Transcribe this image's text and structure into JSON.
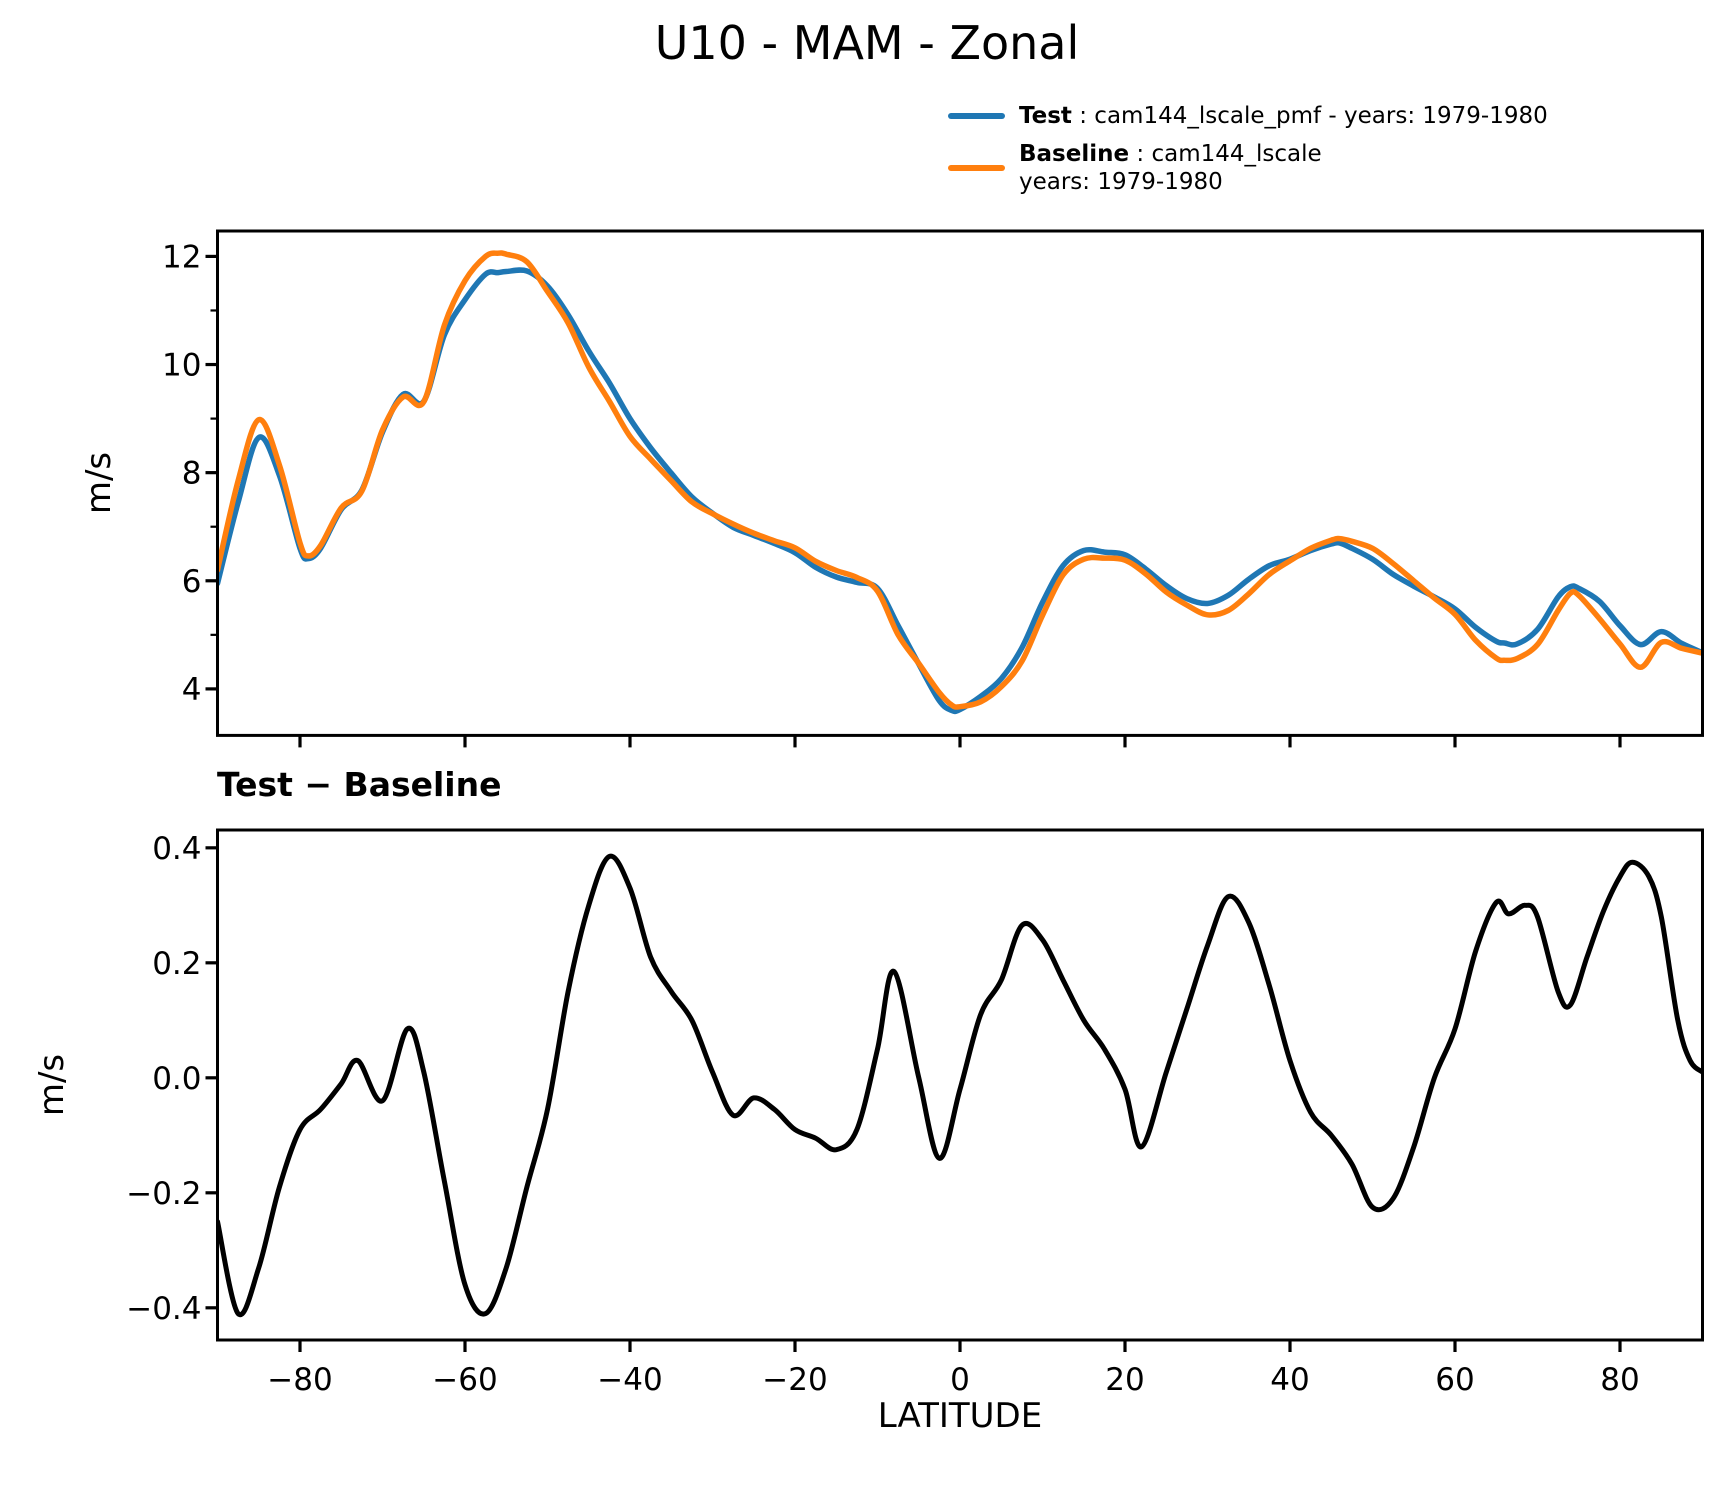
{
  "header": {
    "title": "U10 - MAM - Zonal"
  },
  "legend": {
    "entries": [
      {
        "label": "Test",
        "sep": " : ",
        "desc": "cam144_lscale_pmf - years: 1979-1980",
        "desc2": "",
        "color": "#1f77b4"
      },
      {
        "label": "Baseline",
        "sep": " : ",
        "desc": "cam144_lscale",
        "desc2": "years: 1979-1980",
        "color": "#ff7f0e"
      }
    ]
  },
  "colors": {
    "test": "#1f77b4",
    "baseline": "#ff7f0e",
    "diff": "#000000",
    "axis": "#000000"
  },
  "chart_data": [
    {
      "type": "line",
      "title": "",
      "xlabel": "",
      "ylabel": "m/s",
      "xlim": [
        -90,
        90
      ],
      "ylim": [
        3.14,
        12.47
      ],
      "grid": false,
      "legend_position": "top-right-outside",
      "xticks": [
        -80,
        -60,
        -40,
        -20,
        0,
        20,
        40,
        60,
        80
      ],
      "xtick_labels": [
        "−80",
        "−60",
        "−40",
        "−20",
        "0",
        "20",
        "40",
        "60",
        "80"
      ],
      "show_xtick_labels": false,
      "yticks": [
        4,
        6,
        8,
        10,
        12
      ],
      "ytick_labels": [
        "4",
        "6",
        "8",
        "10",
        "12"
      ],
      "yticks_minor": [
        5,
        7,
        9,
        11
      ],
      "x": [
        -90,
        -87.5,
        -85,
        -82.5,
        -80,
        -79,
        -77.5,
        -75,
        -72.5,
        -70,
        -67.5,
        -65,
        -62.5,
        -60,
        -57.5,
        -56,
        -55,
        -52.5,
        -50,
        -47.5,
        -45,
        -42.5,
        -40,
        -37.5,
        -35,
        -32.5,
        -30,
        -27.5,
        -25,
        -22.5,
        -20,
        -17.5,
        -15,
        -12.5,
        -10,
        -7.5,
        -5,
        -2.5,
        -1,
        0,
        2.5,
        5,
        7.5,
        10,
        12.5,
        15,
        17.5,
        20,
        22.5,
        25,
        27.5,
        30,
        32.5,
        35,
        37.5,
        40,
        42.5,
        45,
        46,
        47.5,
        50,
        52.5,
        55,
        57.5,
        60,
        62.5,
        65,
        66,
        67.5,
        70,
        72.5,
        74,
        75,
        77.5,
        80,
        82.5,
        85,
        87.5,
        90
      ],
      "series": [
        {
          "name": "Test",
          "color": "#1f77b4",
          "values": [
            5.95,
            7.45,
            8.65,
            7.95,
            6.6,
            6.41,
            6.6,
            7.32,
            7.68,
            8.75,
            9.45,
            9.32,
            10.55,
            11.2,
            11.67,
            11.7,
            11.72,
            11.73,
            11.45,
            10.92,
            10.25,
            9.66,
            9.0,
            8.46,
            7.99,
            7.55,
            7.25,
            6.99,
            6.84,
            6.69,
            6.52,
            6.25,
            6.07,
            5.97,
            5.86,
            5.17,
            4.46,
            3.78,
            3.6,
            3.62,
            3.86,
            4.19,
            4.76,
            5.6,
            6.28,
            6.56,
            6.53,
            6.48,
            6.22,
            5.91,
            5.67,
            5.58,
            5.73,
            6.03,
            6.28,
            6.4,
            6.56,
            6.68,
            6.7,
            6.6,
            6.4,
            6.12,
            5.9,
            5.7,
            5.48,
            5.14,
            4.88,
            4.85,
            4.83,
            5.1,
            5.7,
            5.89,
            5.86,
            5.62,
            5.17,
            4.82,
            5.06,
            4.84,
            4.67
          ]
        },
        {
          "name": "Baseline",
          "color": "#ff7f0e",
          "values": [
            6.2,
            7.85,
            8.98,
            8.14,
            6.7,
            6.46,
            6.65,
            7.35,
            7.66,
            8.79,
            9.4,
            9.31,
            10.73,
            11.55,
            12.0,
            12.06,
            12.04,
            11.9,
            11.35,
            10.77,
            9.95,
            9.32,
            8.67,
            8.25,
            7.85,
            7.46,
            7.24,
            7.05,
            6.88,
            6.74,
            6.61,
            6.36,
            6.19,
            6.06,
            5.81,
            5.0,
            4.47,
            3.93,
            3.7,
            3.67,
            3.76,
            4.04,
            4.51,
            5.36,
            6.11,
            6.4,
            6.42,
            6.38,
            6.13,
            5.79,
            5.55,
            5.37,
            5.45,
            5.76,
            6.12,
            6.37,
            6.6,
            6.75,
            6.78,
            6.73,
            6.6,
            6.32,
            6.0,
            5.68,
            5.38,
            4.9,
            4.57,
            4.53,
            4.56,
            4.82,
            5.45,
            5.77,
            5.73,
            5.3,
            4.83,
            4.4,
            4.86,
            4.75,
            4.66
          ]
        }
      ]
    },
    {
      "type": "line",
      "title": "Test − Baseline",
      "xlabel": "LATITUDE",
      "ylabel": "m/s",
      "xlim": [
        -90,
        90
      ],
      "ylim": [
        -0.456,
        0.431
      ],
      "grid": false,
      "xticks": [
        -80,
        -60,
        -40,
        -20,
        0,
        20,
        40,
        60,
        80
      ],
      "xtick_labels": [
        "−80",
        "−60",
        "−40",
        "−20",
        "0",
        "20",
        "40",
        "60",
        "80"
      ],
      "show_xtick_labels": true,
      "yticks": [
        -0.4,
        -0.2,
        0.0,
        0.2,
        0.4
      ],
      "ytick_labels": [
        "−0.4",
        "−0.2",
        "0.0",
        "0.2",
        "0.4"
      ],
      "yticks_minor": [],
      "x": [
        -90,
        -87.5,
        -85,
        -82.5,
        -80,
        -77.5,
        -75,
        -73,
        -70,
        -67,
        -65,
        -62.5,
        -60,
        -57.5,
        -55,
        -52.5,
        -50,
        -47.5,
        -45,
        -42.5,
        -40,
        -37.5,
        -35,
        -32.5,
        -30,
        -27.5,
        -25,
        -22.5,
        -20,
        -17.5,
        -15,
        -12.5,
        -10,
        -8,
        -5,
        -2.5,
        0,
        2.5,
        5,
        7.5,
        10,
        12.5,
        15,
        17.5,
        20,
        22,
        25,
        27.5,
        30,
        32.5,
        35,
        37.5,
        40,
        42.5,
        45,
        47.5,
        50,
        52.5,
        55,
        57.5,
        60,
        62.5,
        65,
        66.5,
        68.5,
        70,
        72.5,
        74,
        76,
        78,
        80,
        81.5,
        83.5,
        85,
        87,
        88.5,
        90
      ],
      "series": [
        {
          "name": "Test − Baseline",
          "color": "#000000",
          "values": [
            -0.25,
            -0.41,
            -0.33,
            -0.19,
            -0.09,
            -0.055,
            -0.01,
            0.03,
            -0.04,
            0.085,
            0.01,
            -0.18,
            -0.36,
            -0.41,
            -0.33,
            -0.19,
            -0.055,
            0.15,
            0.3,
            0.385,
            0.33,
            0.21,
            0.15,
            0.1,
            0.01,
            -0.065,
            -0.035,
            -0.055,
            -0.09,
            -0.105,
            -0.125,
            -0.09,
            0.05,
            0.185,
            0.0,
            -0.14,
            -0.02,
            0.11,
            0.17,
            0.265,
            0.24,
            0.17,
            0.1,
            0.05,
            -0.02,
            -0.12,
            0.01,
            0.12,
            0.23,
            0.315,
            0.27,
            0.16,
            0.03,
            -0.06,
            -0.1,
            -0.15,
            -0.225,
            -0.21,
            -0.12,
            0.0,
            0.085,
            0.22,
            0.305,
            0.285,
            0.3,
            0.28,
            0.15,
            0.127,
            0.21,
            0.29,
            0.35,
            0.375,
            0.35,
            0.28,
            0.1,
            0.03,
            0.01
          ]
        }
      ]
    }
  ]
}
